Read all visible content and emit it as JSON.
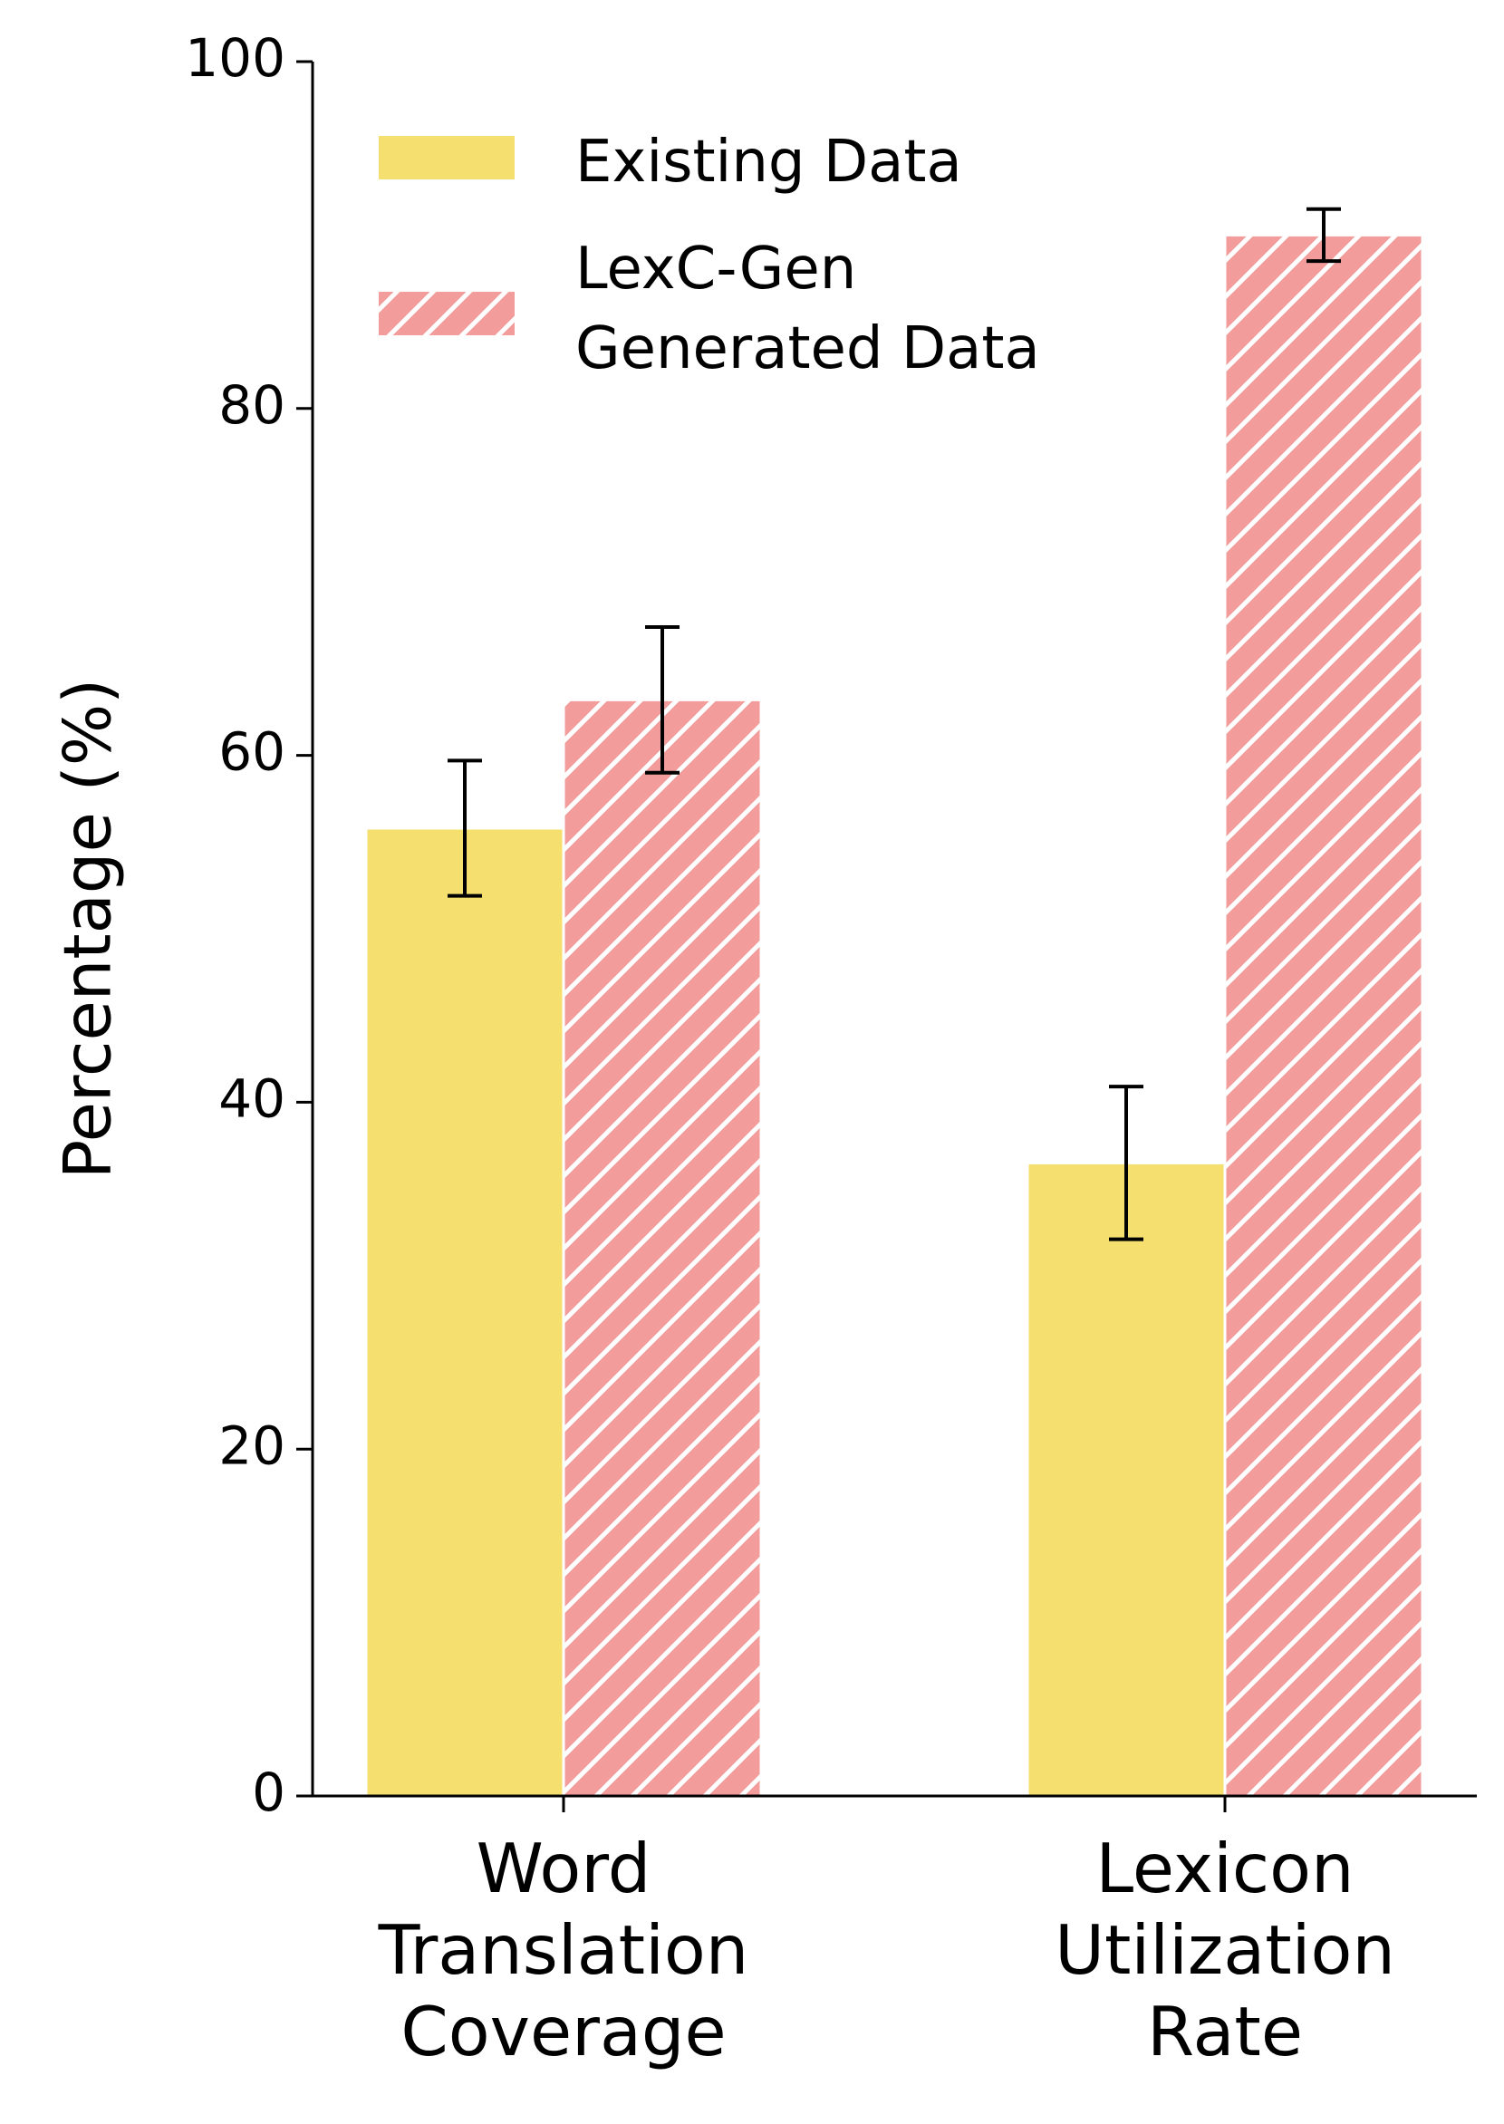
{
  "chart_data": {
    "type": "bar",
    "title": "",
    "xlabel": "",
    "ylabel": "Percentage (%)",
    "ylim": [
      0,
      100
    ],
    "yticks": [
      0,
      20,
      40,
      60,
      80,
      100
    ],
    "grid": false,
    "legend_position": "top-left",
    "categories": [
      [
        "Word",
        "Translation",
        "Coverage"
      ],
      [
        "Lexicon",
        "Utilization",
        "Rate"
      ]
    ],
    "series": [
      {
        "name": "Existing Data",
        "legend_lines": [
          "Existing Data"
        ],
        "values": [
          55.8,
          36.5
        ],
        "errors": [
          3.9,
          4.4
        ],
        "color": "#f5df6e",
        "hatch": "none"
      },
      {
        "name": "LexC-Gen Generated Data",
        "legend_lines": [
          "LexC-Gen",
          "Generated Data"
        ],
        "values": [
          63.2,
          90.0
        ],
        "errors": [
          4.2,
          1.5
        ],
        "color": "#f39c9c",
        "hatch": "diagonal"
      }
    ]
  }
}
